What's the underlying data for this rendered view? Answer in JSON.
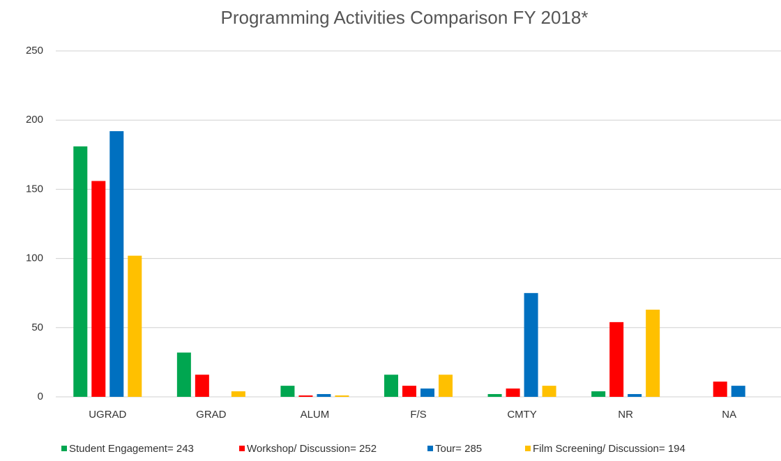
{
  "chart_data": {
    "type": "bar",
    "title": "Programming Activities  Comparison FY 2018*",
    "categories": [
      "UGRAD",
      "GRAD",
      "ALUM",
      "F/S",
      "CMTY",
      "NR",
      "NA"
    ],
    "series": [
      {
        "name": "Student Engagement= 243",
        "color": "#00a650",
        "values": [
          181,
          32,
          8,
          16,
          2,
          4,
          0
        ]
      },
      {
        "name": "Workshop/ Discussion= 252",
        "color": "#ff0000",
        "values": [
          156,
          16,
          1,
          8,
          6,
          54,
          11
        ]
      },
      {
        "name": "Tour= 285",
        "color": "#0070c0",
        "values": [
          192,
          0,
          2,
          6,
          75,
          2,
          8
        ]
      },
      {
        "name": "Film Screening/ Discussion= 194",
        "color": "#ffc000",
        "values": [
          102,
          4,
          1,
          16,
          8,
          63,
          0
        ]
      }
    ],
    "ylim": [
      0,
      250
    ],
    "yticks": [
      0,
      50,
      100,
      150,
      200,
      250
    ],
    "grid": true,
    "legend": "bottom"
  }
}
